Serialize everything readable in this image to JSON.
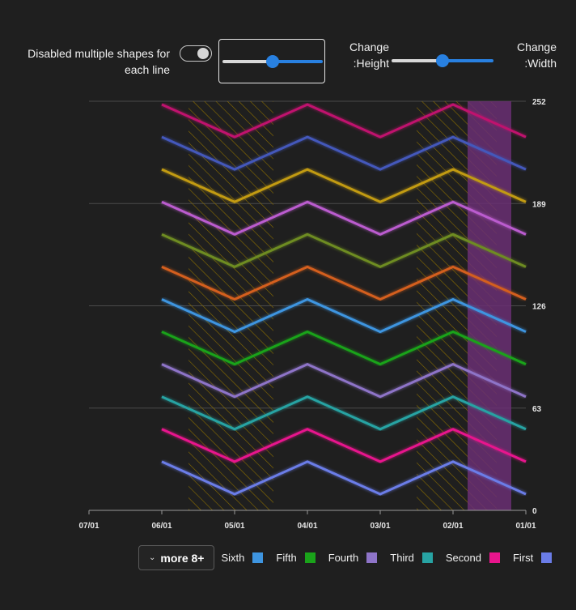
{
  "controls": {
    "toggle_label": "Disabled multiple shapes for each line",
    "height_label_top": "Change",
    "height_label_bottom": ":Height",
    "width_label_top": "Change",
    "width_label_bottom": ":Width",
    "slider_box_value": 50,
    "height_value": 50,
    "width_value": 50
  },
  "legend": {
    "more_label": "more 8+",
    "items": [
      {
        "label": "Sixth",
        "color": "#3e95e0"
      },
      {
        "label": "Fifth",
        "color": "#1aa31a"
      },
      {
        "label": "Fourth",
        "color": "#8e74c8"
      },
      {
        "label": "Third",
        "color": "#27a3a3"
      },
      {
        "label": "Second",
        "color": "#e8158d"
      },
      {
        "label": "First",
        "color": "#6b7de8"
      }
    ]
  },
  "chart_data": {
    "type": "line",
    "x_ticks": [
      "07/01",
      "06/01",
      "05/01",
      "04/01",
      "03/01",
      "02/01",
      "01/01"
    ],
    "x_note": "x axis reversed: 07/01 on left, 01/01 on right",
    "y_ticks": [
      0,
      63,
      126,
      189,
      252
    ],
    "ylim": [
      0,
      252
    ],
    "y_axis_position": "right",
    "x": [
      "06/01",
      "05/01",
      "04/01",
      "03/01",
      "02/01",
      "01/01"
    ],
    "series": [
      {
        "name": "First",
        "color": "#6b7de8",
        "values": [
          30,
          10,
          30,
          10,
          30,
          10
        ]
      },
      {
        "name": "Second",
        "color": "#e8158d",
        "values": [
          50,
          30,
          50,
          30,
          50,
          30
        ]
      },
      {
        "color": "#27a3a3",
        "values": [
          70,
          50,
          70,
          50,
          70,
          50
        ]
      },
      {
        "color": "#8e74c8",
        "values": [
          90,
          70,
          90,
          70,
          90,
          70
        ]
      },
      {
        "name": "Fifth",
        "color": "#1aa31a",
        "values": [
          110,
          90,
          110,
          90,
          110,
          90
        ]
      },
      {
        "name": "Sixth",
        "color": "#3e95e0",
        "values": [
          130,
          110,
          130,
          110,
          130,
          110
        ]
      },
      {
        "color": "#d45f1e",
        "values": [
          150,
          130,
          150,
          130,
          150,
          130
        ]
      },
      {
        "color": "#6e8c22",
        "values": [
          170,
          150,
          170,
          150,
          170,
          150
        ]
      },
      {
        "color": "#bb5ccf",
        "values": [
          190,
          170,
          190,
          170,
          190,
          170
        ]
      },
      {
        "color": "#c29b12",
        "values": [
          210,
          190,
          210,
          190,
          210,
          190
        ]
      },
      {
        "color": "#4458bb",
        "values": [
          230,
          210,
          230,
          210,
          230,
          210
        ]
      },
      {
        "color": "#c0126e",
        "values": [
          250,
          230,
          250,
          230,
          250,
          230
        ]
      }
    ],
    "bands": [
      {
        "from": "05/20",
        "to": "04/15",
        "style": "hatched",
        "color": "#8a6d00"
      },
      {
        "from": "02/16",
        "to": "01/13",
        "style": "hatched",
        "color": "#8a6d00"
      },
      {
        "from": "01/25",
        "to": "01/07",
        "style": "solid",
        "color": "#6a2f73"
      }
    ],
    "grid": true,
    "legend_position": "bottom"
  }
}
